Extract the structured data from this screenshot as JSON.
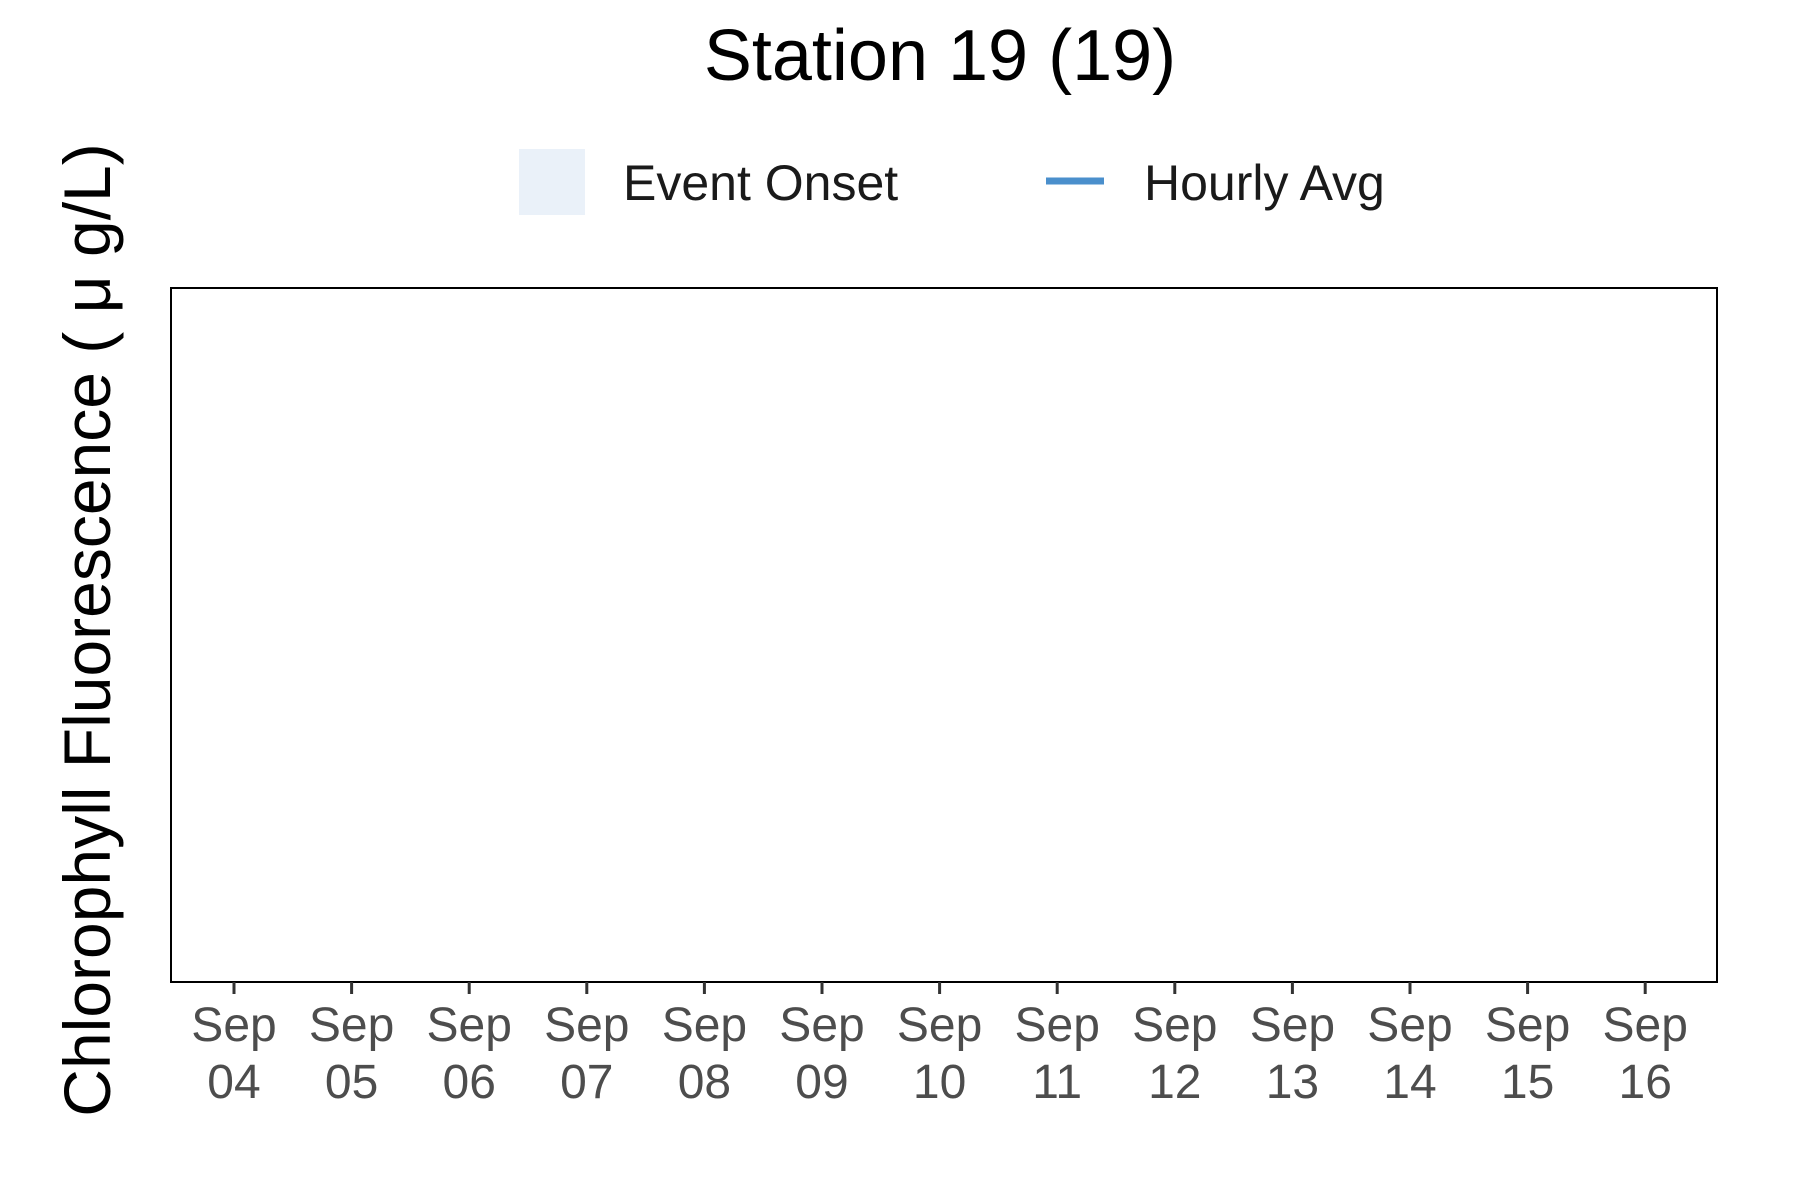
{
  "chart_data": {
    "type": "line",
    "title": "Station 19 (19)",
    "xlabel": "",
    "ylabel": "Chlorophyll Fluorescence ( μ g/L)",
    "x_ticks": [
      {
        "month": "Sep",
        "day": "04"
      },
      {
        "month": "Sep",
        "day": "05"
      },
      {
        "month": "Sep",
        "day": "06"
      },
      {
        "month": "Sep",
        "day": "07"
      },
      {
        "month": "Sep",
        "day": "08"
      },
      {
        "month": "Sep",
        "day": "09"
      },
      {
        "month": "Sep",
        "day": "10"
      },
      {
        "month": "Sep",
        "day": "11"
      },
      {
        "month": "Sep",
        "day": "12"
      },
      {
        "month": "Sep",
        "day": "13"
      },
      {
        "month": "Sep",
        "day": "14"
      },
      {
        "month": "Sep",
        "day": "15"
      },
      {
        "month": "Sep",
        "day": "16"
      }
    ],
    "legend": {
      "placement": "top",
      "entries": [
        {
          "label": "Event Onset",
          "kind": "fill",
          "color": "#eaf1f9"
        },
        {
          "label": "Hourly Avg",
          "kind": "line",
          "color": "#4a8fcc"
        }
      ]
    },
    "series": [
      {
        "name": "Hourly Avg",
        "color": "#4a8fcc",
        "values": []
      }
    ],
    "grid": false
  }
}
